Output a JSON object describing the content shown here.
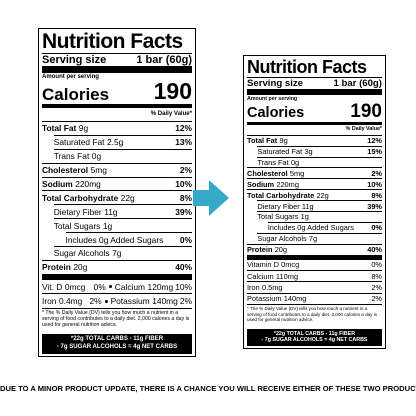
{
  "labels": [
    {
      "title": "Nutrition Facts",
      "serving_label": "Serving size",
      "serving": "1 bar (60g)",
      "amount_per_serving": "Amount per serving",
      "calories_label": "Calories",
      "calories": 190,
      "dv_header": "% Daily Value*",
      "nutrients": [
        {
          "name": "Total Fat",
          "amount": "9g",
          "dv": "12%"
        },
        {
          "name": "Saturated Fat",
          "amount": "2.5g",
          "dv": "13%"
        },
        {
          "name": "Trans Fat",
          "amount": "0g"
        },
        {
          "name": "Cholesterol",
          "amount": "5mg",
          "dv": "2%"
        },
        {
          "name": "Sodium",
          "amount": "220mg",
          "dv": "10%"
        },
        {
          "name": "Total Carbohydrate",
          "amount": "22g",
          "dv": "8%"
        },
        {
          "name": "Dietary Fiber",
          "amount": "11g",
          "dv": "39%"
        },
        {
          "name": "Total Sugars",
          "amount": "1g"
        },
        {
          "name": "Includes 0g Added Sugars",
          "dv": "0%"
        },
        {
          "name": "Sugar Alcohols",
          "amount": "7g"
        },
        {
          "name": "Protein",
          "amount": "20g",
          "dv": "40%"
        }
      ],
      "minerals": [
        [
          {
            "name": "Vit. D",
            "amount": "0mcg",
            "dv": "0%"
          },
          {
            "name": "Calcium",
            "amount": "120mg",
            "dv": "10%"
          }
        ],
        [
          {
            "name": "Iron",
            "amount": "0.4mg",
            "dv": "2%"
          },
          {
            "name": "Potassium",
            "amount": "140mg",
            "dv": "2%"
          }
        ]
      ],
      "footnote": "* The % Daily Value (DV) tells you how much a nutrient in a serving of food contributes to a daily diet. 2,000 calories a day is used for general nutrition advice.",
      "net_carbs": [
        "*22g TOTAL CARBS - 11g FIBER",
        "- 7g SUGAR ALCOHOLS = 4g NET CARBS"
      ]
    },
    {
      "title": "Nutrition Facts",
      "serving_label": "Serving size",
      "serving": "1 bar (60g)",
      "amount_per_serving": "Amount per serving",
      "calories_label": "Calories",
      "calories": 190,
      "dv_header": "% Daily Value*",
      "nutrients": [
        {
          "name": "Total Fat",
          "amount": "9g",
          "dv": "12%"
        },
        {
          "name": "Saturated Fat",
          "amount": "3g",
          "dv": "15%"
        },
        {
          "name": "Trans Fat",
          "amount": "0g"
        },
        {
          "name": "Cholesterol",
          "amount": "5mg",
          "dv": "2%"
        },
        {
          "name": "Sodium",
          "amount": "220mg",
          "dv": "10%"
        },
        {
          "name": "Total Carbohydrate",
          "amount": "22g",
          "dv": "8%"
        },
        {
          "name": "Dietary Fiber",
          "amount": "11g",
          "dv": "39%"
        },
        {
          "name": "Total Sugars",
          "amount": "1g"
        },
        {
          "name": "Includes 0g Added Sugars",
          "dv": "0%"
        },
        {
          "name": "Sugar Alcohols",
          "amount": "7g"
        },
        {
          "name": "Protein",
          "amount": "20g",
          "dv": "40%"
        }
      ],
      "minerals": [
        [
          {
            "name": "Vitamin D",
            "amount": "0mcg",
            "dv": "0%"
          }
        ],
        [
          {
            "name": "Calcium",
            "amount": "110mg",
            "dv": "8%"
          }
        ],
        [
          {
            "name": "Iron",
            "amount": "0.5mg",
            "dv": "2%"
          }
        ],
        [
          {
            "name": "Potassium",
            "amount": "140mg",
            "dv": "2%"
          }
        ]
      ],
      "footnote": "* The % Daily Value (DV) tells you how much a nutrient in a serving of food contributes to a daily diet. 2,000 calories a day is used for general nutrition advice.",
      "net_carbs": [
        "*22g TOTAL CARBS - 11g FIBER",
        "- 7g SUGAR ALCOHOLS = 4g NET CARBS"
      ]
    }
  ],
  "notice": "DUE TO A MINOR PRODUCT UPDATE, THERE IS A CHANCE YOU WILL RECEIVE EITHER OF THESE TWO PRODUCTS"
}
